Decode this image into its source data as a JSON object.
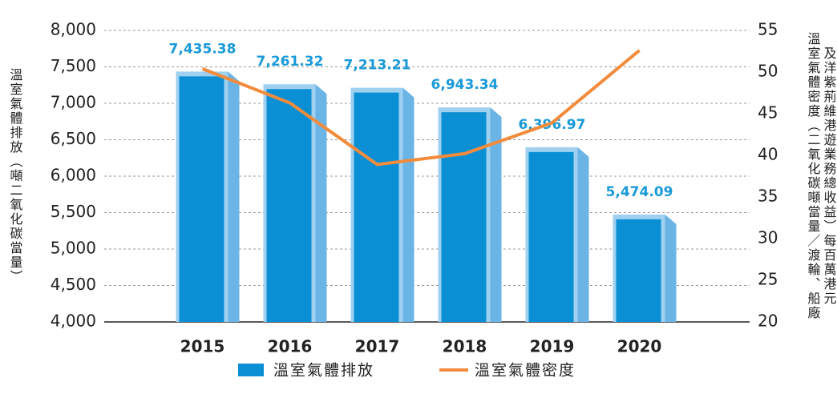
{
  "chart_data": {
    "type": "bar_line",
    "categories": [
      "2015",
      "2016",
      "2017",
      "2018",
      "2019",
      "2020"
    ],
    "ylabel": "溫室氣體排放（噸二氧化碳當量）",
    "y2label": [
      "溫室氣體密度（二氧化碳噸當量／渡輪、船廠",
      "及洋紫荊維港遊業務總收益）每百萬港元"
    ],
    "ylim": [
      4000,
      8000
    ],
    "yticks": [
      {
        "value": 4000,
        "label": "4,000"
      },
      {
        "value": 4500,
        "label": "4,500"
      },
      {
        "value": 5000,
        "label": "5,000"
      },
      {
        "value": 5500,
        "label": "5,500"
      },
      {
        "value": 6000,
        "label": "6,000"
      },
      {
        "value": 6500,
        "label": "6,500"
      },
      {
        "value": 7000,
        "label": "7,000"
      },
      {
        "value": 7500,
        "label": "7,500"
      },
      {
        "value": 8000,
        "label": "8,000"
      }
    ],
    "y2lim": [
      20,
      55
    ],
    "y2ticks": [
      20,
      25,
      30,
      35,
      40,
      45,
      50,
      55
    ],
    "grid": true,
    "series": [
      {
        "name": "溫室氣體排放",
        "type": "bar",
        "color": "#0a8fd4",
        "values": [
          7435.38,
          7261.32,
          7213.21,
          6943.34,
          6396.97,
          5474.09
        ],
        "value_labels": [
          "7,435.38",
          "7,261.32",
          "7,213.21",
          "6,943.34",
          "6,396.97",
          "5,474.09"
        ]
      },
      {
        "name": "溫室氣體密度",
        "type": "line",
        "axis": "y2",
        "color": "#f28c3c",
        "values": [
          50.4,
          46.3,
          38.9,
          40.2,
          43.9,
          52.6
        ]
      }
    ]
  }
}
